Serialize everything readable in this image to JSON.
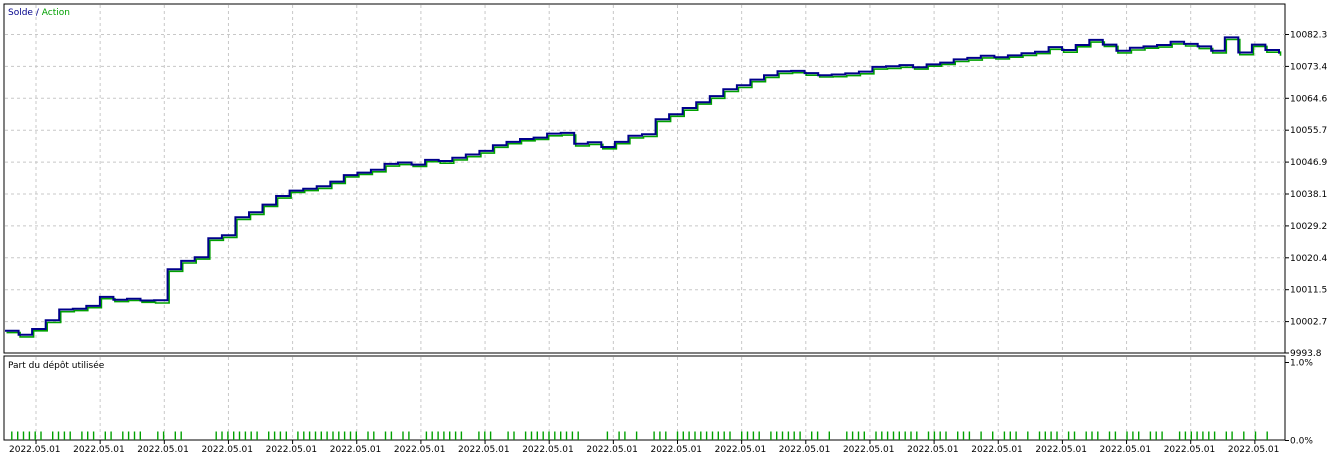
{
  "chart_data": [
    {
      "type": "line",
      "legend": {
        "items": [
          {
            "label": "Solde",
            "color": "#00008b"
          },
          {
            "label": "Action",
            "color": "#00a000"
          }
        ],
        "separator": " / ",
        "placement": "top-left"
      },
      "y_ticks": [
        "10082.3",
        "10073.4",
        "10064.6",
        "10055.7",
        "10046.9",
        "10038.1",
        "10029.2",
        "10020.4",
        "10011.5",
        "10002.7",
        "9993.8"
      ],
      "ylim": [
        9993.8,
        10086.0
      ],
      "y_axis_side": "right",
      "grid": true,
      "series": [
        {
          "name": "Solde",
          "color": "#00008b",
          "values": [
            10000.1,
            9999.0,
            10000.6,
            10003.0,
            10006.0,
            10006.2,
            10007.0,
            10009.5,
            10008.7,
            10009.0,
            10008.5,
            10008.6,
            10017.2,
            10019.5,
            10020.5,
            10025.8,
            10026.6,
            10031.6,
            10033.0,
            10035.1,
            10037.5,
            10039.0,
            10039.5,
            10040.2,
            10041.5,
            10043.3,
            10044.0,
            10044.8,
            10046.4,
            10046.8,
            10046.2,
            10047.5,
            10047.2,
            10048.1,
            10049.0,
            10050.0,
            10051.6,
            10052.5,
            10053.3,
            10053.7,
            10054.8,
            10055.0,
            10052.0,
            10052.4,
            10051.1,
            10052.5,
            10054.2,
            10054.6,
            10058.8,
            10060.2,
            10061.9,
            10063.5,
            10065.2,
            10067.1,
            10068.2,
            10069.8,
            10071.0,
            10072.1,
            10072.2,
            10071.6,
            10071.0,
            10071.2,
            10071.5,
            10072.0,
            10073.3,
            10073.5,
            10073.8,
            10073.2,
            10074.0,
            10074.5,
            10075.4,
            10075.8,
            10076.4,
            10076.0,
            10076.5,
            10077.1,
            10077.5,
            10078.8,
            10078.0,
            10079.4,
            10080.8,
            10079.5,
            10077.8,
            10078.6,
            10079.0,
            10079.4,
            10080.3,
            10079.7,
            10079.0,
            10077.8,
            10081.5,
            10077.3,
            10079.5,
            10078.0,
            10077.0
          ]
        },
        {
          "name": "Action",
          "color": "#00a000",
          "values": [
            9999.6,
            9998.4,
            10000.1,
            10002.4,
            10005.4,
            10005.7,
            10006.5,
            10009.0,
            10008.2,
            10008.5,
            10008.0,
            10007.8,
            10016.6,
            10018.9,
            10020.0,
            10025.2,
            10026.0,
            10031.0,
            10032.4,
            10034.6,
            10036.9,
            10038.5,
            10039.0,
            10039.6,
            10041.0,
            10042.8,
            10043.5,
            10044.2,
            10045.8,
            10046.2,
            10045.7,
            10047.0,
            10046.6,
            10047.5,
            10048.4,
            10049.4,
            10051.0,
            10052.0,
            10052.8,
            10053.2,
            10054.2,
            10054.4,
            10051.4,
            10051.8,
            10050.6,
            10052.0,
            10053.6,
            10054.0,
            10058.2,
            10059.6,
            10061.3,
            10063.0,
            10064.6,
            10066.5,
            10067.6,
            10069.2,
            10070.4,
            10071.5,
            10071.7,
            10071.0,
            10070.5,
            10070.6,
            10070.9,
            10071.4,
            10072.7,
            10072.9,
            10073.2,
            10072.7,
            10073.5,
            10074.0,
            10074.8,
            10075.2,
            10075.8,
            10075.5,
            10076.0,
            10076.5,
            10077.0,
            10078.2,
            10077.4,
            10078.9,
            10080.2,
            10079.0,
            10077.2,
            10078.0,
            10078.5,
            10078.8,
            10079.7,
            10079.1,
            10078.4,
            10077.2,
            10080.9,
            10076.7,
            10079.0,
            10077.4,
            10076.4
          ]
        }
      ]
    },
    {
      "type": "bar",
      "title": "Part du dépôt utilisée",
      "y_ticks": [
        "1.0%",
        "0.0%"
      ],
      "ylim": [
        0,
        1.0
      ],
      "y_axis_side": "right",
      "grid": true,
      "color": "#00a000",
      "x_tick_labels": [
        "2022.05.01",
        "2022.05.01",
        "2022.05.01",
        "2022.05.01",
        "2022.05.01",
        "2022.05.01",
        "2022.05.01",
        "2022.05.01",
        "2022.05.01",
        "2022.05.01",
        "2022.05.01",
        "2022.05.01",
        "2022.05.01",
        "2022.05.01",
        "2022.05.01",
        "2022.05.01",
        "2022.05.01",
        "2022.05.01",
        "2022.05.01",
        "2022.05.01"
      ],
      "bar_runs": [
        [
          1,
          6
        ],
        [
          8,
          11
        ],
        [
          13,
          15
        ],
        [
          17,
          18
        ],
        [
          20,
          23
        ],
        [
          26,
          27
        ],
        [
          29,
          30
        ],
        [
          36,
          43
        ],
        [
          45,
          48
        ],
        [
          50,
          60
        ],
        [
          62,
          63
        ],
        [
          65,
          66
        ],
        [
          68,
          69
        ],
        [
          72,
          78
        ],
        [
          81,
          83
        ],
        [
          86,
          87
        ],
        [
          89,
          98
        ],
        [
          103,
          103
        ],
        [
          105,
          106
        ],
        [
          108,
          108
        ],
        [
          111,
          113
        ],
        [
          115,
          124
        ],
        [
          126,
          129
        ],
        [
          131,
          136
        ],
        [
          138,
          139
        ],
        [
          141,
          141
        ],
        [
          144,
          147
        ],
        [
          149,
          156
        ],
        [
          158,
          161
        ],
        [
          163,
          165
        ],
        [
          167,
          167
        ],
        [
          169,
          169
        ],
        [
          171,
          173
        ],
        [
          175,
          175
        ],
        [
          177,
          180
        ],
        [
          182,
          183
        ],
        [
          185,
          187
        ],
        [
          189,
          190
        ],
        [
          192,
          194
        ],
        [
          196,
          198
        ],
        [
          201,
          207
        ],
        [
          209,
          210
        ],
        [
          212,
          212
        ],
        [
          214,
          214
        ],
        [
          216,
          216
        ]
      ],
      "bar_count": 218,
      "bar_values": 0.11
    }
  ]
}
